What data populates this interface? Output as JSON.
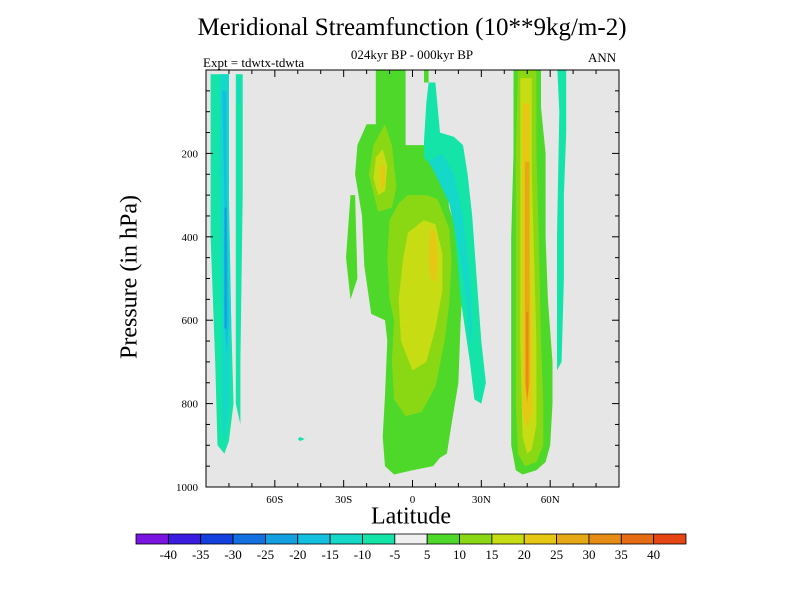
{
  "colors": {
    "background": "#e6e6e6",
    "scale": [
      "#7a14e0",
      "#3a1ce0",
      "#1440e0",
      "#1470e0",
      "#14a0e0",
      "#14c0e0",
      "#14d8c8",
      "#14e4a8",
      "#f0f0f0",
      "#4ed82a",
      "#8ad814",
      "#c8dc14",
      "#e6c814",
      "#e6a814",
      "#e68c14",
      "#e66c14",
      "#e64614"
    ]
  },
  "chart_data": {
    "type": "contour",
    "title": "Meridional Streamfunction (10**9kg/m-2)",
    "subtitle": "024kyr BP - 000kyr BP",
    "experiment": "Expt = tdwtx-tdwta",
    "season": "ANN",
    "xlabel": "Latitude",
    "ylabel": "Pressure (in hPa)",
    "xlim": [
      -90,
      90
    ],
    "ylim": [
      1000,
      0
    ],
    "x_ticks": [
      {
        "value": -60,
        "label": "60S"
      },
      {
        "value": -30,
        "label": "30S"
      },
      {
        "value": 0,
        "label": "0"
      },
      {
        "value": 30,
        "label": "30N"
      },
      {
        "value": 60,
        "label": "60N"
      }
    ],
    "y_ticks": [
      {
        "value": 200,
        "label": "200"
      },
      {
        "value": 400,
        "label": "400"
      },
      {
        "value": 600,
        "label": "600"
      },
      {
        "value": 800,
        "label": "800"
      },
      {
        "value": 1000,
        "label": "1000"
      }
    ],
    "colorbar_labels": [
      "-40",
      "-35",
      "-30",
      "-25",
      "-20",
      "-15",
      "-10",
      "-5",
      "5",
      "10",
      "15",
      "20",
      "25",
      "30",
      "35",
      "40"
    ],
    "regions": [
      {
        "name": "sh-high-cell",
        "level": -10,
        "points": [
          [
            -88,
            10
          ],
          [
            -80,
            10
          ],
          [
            -80,
            400
          ],
          [
            -78,
            800
          ],
          [
            -80,
            890
          ],
          [
            -82,
            920
          ],
          [
            -85,
            900
          ],
          [
            -86,
            700
          ],
          [
            -88,
            400
          ]
        ]
      },
      {
        "name": "sh-high-cell-inner",
        "level": -15,
        "points": [
          [
            -84,
            10
          ],
          [
            -80,
            10
          ],
          [
            -80,
            300
          ],
          [
            -79,
            600
          ],
          [
            -80,
            800
          ],
          [
            -82,
            890
          ],
          [
            -83,
            860
          ],
          [
            -83,
            600
          ],
          [
            -84,
            300
          ]
        ]
      },
      {
        "name": "sh-high-cell-core",
        "level": -20,
        "points": [
          [
            -83,
            50
          ],
          [
            -81,
            50
          ],
          [
            -81,
            300
          ],
          [
            -80,
            600
          ],
          [
            -81,
            680
          ],
          [
            -82,
            600
          ],
          [
            -82,
            300
          ]
        ]
      },
      {
        "name": "sh-high-cell-max",
        "level": -25,
        "points": [
          [
            -82,
            330
          ],
          [
            -81,
            330
          ],
          [
            -81,
            620
          ],
          [
            -82,
            620
          ]
        ]
      },
      {
        "name": "sh-cell-b",
        "level": -10,
        "points": [
          [
            -77,
            10
          ],
          [
            -74,
            10
          ],
          [
            -74,
            300
          ],
          [
            -75,
            700
          ],
          [
            -75,
            850
          ],
          [
            -77,
            800
          ],
          [
            -77,
            400
          ]
        ]
      },
      {
        "name": "sh-cell-b-inner",
        "level": -15,
        "points": [
          [
            -76,
            20
          ],
          [
            -75,
            20
          ],
          [
            -75,
            80
          ],
          [
            -76,
            80
          ]
        ]
      },
      {
        "name": "sh-small-blob",
        "level": -10,
        "points": [
          [
            -49,
            880
          ],
          [
            -47,
            885
          ],
          [
            -49,
            890
          ],
          [
            -50,
            885
          ]
        ]
      },
      {
        "name": "lat-strip-main",
        "level": 5,
        "points": [
          [
            -16,
            -20
          ],
          [
            -13,
            -20
          ],
          [
            -13,
            0
          ],
          [
            -7,
            0
          ],
          [
            -3,
            180
          ],
          [
            7,
            180
          ],
          [
            11,
            200
          ],
          [
            15,
            280
          ],
          [
            16,
            330
          ],
          [
            20,
            400
          ],
          [
            22,
            500
          ],
          [
            21,
            600
          ],
          [
            20,
            750
          ],
          [
            17,
            850
          ],
          [
            15,
            920
          ],
          [
            12,
            930
          ],
          [
            9,
            950
          ],
          [
            0,
            960
          ],
          [
            -8,
            970
          ],
          [
            -12,
            950
          ],
          [
            -13,
            880
          ],
          [
            -12,
            780
          ],
          [
            -11,
            650
          ],
          [
            -12,
            600
          ],
          [
            -18,
            585
          ],
          [
            -21,
            470
          ],
          [
            -22,
            350
          ],
          [
            -25,
            250
          ],
          [
            -24,
            180
          ],
          [
            -20,
            130
          ],
          [
            -16,
            130
          ]
        ]
      },
      {
        "name": "lat-strip-sh-edge",
        "level": 5,
        "points": [
          [
            -27,
            300
          ],
          [
            -25,
            300
          ],
          [
            -24,
            500
          ],
          [
            -27,
            550
          ],
          [
            -29,
            450
          ]
        ]
      },
      {
        "name": "sh-upper-core",
        "level": 10,
        "points": [
          [
            -17,
            180
          ],
          [
            -12,
            130
          ],
          [
            -9,
            180
          ],
          [
            -7,
            280
          ],
          [
            -9,
            330
          ],
          [
            -15,
            340
          ],
          [
            -19,
            250
          ]
        ]
      },
      {
        "name": "sh-upper-core-2",
        "level": 15,
        "points": [
          [
            -16,
            210
          ],
          [
            -13,
            190
          ],
          [
            -11,
            230
          ],
          [
            -12,
            290
          ],
          [
            -15,
            300
          ],
          [
            -17,
            260
          ]
        ]
      },
      {
        "name": "sh-upper-core-3",
        "level": 20,
        "points": [
          [
            -14,
            230
          ],
          [
            -12,
            230
          ],
          [
            -12,
            270
          ],
          [
            -13,
            290
          ],
          [
            -14,
            270
          ]
        ]
      },
      {
        "name": "eq-lower-cell",
        "level": 10,
        "points": [
          [
            -10,
            360
          ],
          [
            -6,
            320
          ],
          [
            -2,
            300
          ],
          [
            6,
            300
          ],
          [
            11,
            310
          ],
          [
            16,
            380
          ],
          [
            17,
            460
          ],
          [
            16,
            560
          ],
          [
            14,
            650
          ],
          [
            10,
            760
          ],
          [
            4,
            820
          ],
          [
            -3,
            830
          ],
          [
            -8,
            790
          ],
          [
            -9,
            700
          ],
          [
            -8,
            600
          ],
          [
            -10,
            550
          ],
          [
            -11,
            450
          ]
        ]
      },
      {
        "name": "eq-lower-cell-2",
        "level": 15,
        "points": [
          [
            -2,
            390
          ],
          [
            5,
            360
          ],
          [
            10,
            370
          ],
          [
            13,
            440
          ],
          [
            13,
            530
          ],
          [
            10,
            620
          ],
          [
            6,
            700
          ],
          [
            0,
            720
          ],
          [
            -5,
            650
          ],
          [
            -6,
            550
          ],
          [
            -4,
            450
          ]
        ]
      },
      {
        "name": "eq-lower-cell-3",
        "level": 20,
        "points": [
          [
            8,
            380
          ],
          [
            10,
            390
          ],
          [
            11,
            460
          ],
          [
            10,
            510
          ],
          [
            8,
            500
          ],
          [
            7,
            450
          ]
        ]
      },
      {
        "name": "nh-neg-arm",
        "level": -10,
        "points": [
          [
            5,
            170
          ],
          [
            5,
            210
          ],
          [
            12,
            250
          ],
          [
            16,
            280
          ],
          [
            19,
            420
          ],
          [
            21,
            550
          ],
          [
            25,
            700
          ],
          [
            27,
            790
          ],
          [
            30,
            800
          ],
          [
            32,
            750
          ],
          [
            30,
            650
          ],
          [
            28,
            500
          ],
          [
            26,
            350
          ],
          [
            24,
            250
          ],
          [
            22,
            180
          ],
          [
            18,
            160
          ],
          [
            12,
            150
          ],
          [
            10,
            30
          ],
          [
            7,
            30
          ],
          [
            6,
            80
          ]
        ]
      },
      {
        "name": "nh-neg-arm-2",
        "level": -15,
        "points": [
          [
            7,
            220
          ],
          [
            10,
            250
          ],
          [
            16,
            320
          ],
          [
            21,
            450
          ],
          [
            24,
            580
          ],
          [
            25,
            660
          ],
          [
            26,
            620
          ],
          [
            25,
            500
          ],
          [
            22,
            350
          ],
          [
            18,
            250
          ],
          [
            13,
            200
          ]
        ]
      },
      {
        "name": "lat-strip-nh-top",
        "level": 5,
        "points": [
          [
            -6,
            -20
          ],
          [
            -3,
            -20
          ],
          [
            -3,
            180
          ],
          [
            -7,
            180
          ],
          [
            -8,
            0
          ]
        ]
      },
      {
        "name": "lat-strip-nh-top2",
        "level": 5,
        "points": [
          [
            5,
            -20
          ],
          [
            7,
            -20
          ],
          [
            7,
            30
          ],
          [
            5,
            30
          ]
        ]
      },
      {
        "name": "nh-main-cell",
        "level": 5,
        "points": [
          [
            44,
            -20
          ],
          [
            56,
            -20
          ],
          [
            56,
            90
          ],
          [
            58,
            200
          ],
          [
            58,
            400
          ],
          [
            59,
            550
          ],
          [
            61,
            700
          ],
          [
            61,
            800
          ],
          [
            60,
            900
          ],
          [
            58,
            940
          ],
          [
            54,
            960
          ],
          [
            48,
            970
          ],
          [
            45,
            960
          ],
          [
            43,
            900
          ],
          [
            43,
            700
          ],
          [
            43,
            400
          ],
          [
            44,
            200
          ]
        ]
      },
      {
        "name": "nh-main-cell-2",
        "level": 10,
        "points": [
          [
            46,
            0
          ],
          [
            54,
            0
          ],
          [
            54,
            200
          ],
          [
            55,
            400
          ],
          [
            56,
            650
          ],
          [
            57,
            800
          ],
          [
            57,
            900
          ],
          [
            54,
            940
          ],
          [
            49,
            950
          ],
          [
            46,
            920
          ],
          [
            45,
            800
          ],
          [
            45,
            500
          ],
          [
            45,
            200
          ]
        ]
      },
      {
        "name": "nh-main-cell-3",
        "level": 15,
        "points": [
          [
            47,
            20
          ],
          [
            52,
            20
          ],
          [
            52,
            250
          ],
          [
            53,
            450
          ],
          [
            54,
            650
          ],
          [
            54,
            850
          ],
          [
            52,
            910
          ],
          [
            50,
            920
          ],
          [
            48,
            880
          ],
          [
            47,
            650
          ],
          [
            47,
            400
          ]
        ]
      },
      {
        "name": "nh-main-cell-4",
        "level": 20,
        "points": [
          [
            48,
            80
          ],
          [
            51,
            80
          ],
          [
            51,
            400
          ],
          [
            52,
            650
          ],
          [
            52,
            820
          ],
          [
            50,
            860
          ],
          [
            48,
            820
          ],
          [
            48,
            550
          ]
        ]
      },
      {
        "name": "nh-main-cell-5",
        "level": 25,
        "points": [
          [
            49,
            220
          ],
          [
            51,
            220
          ],
          [
            51,
            500
          ],
          [
            51,
            750
          ],
          [
            50,
            800
          ],
          [
            49,
            750
          ],
          [
            49,
            450
          ]
        ]
      },
      {
        "name": "nh-main-cell-6",
        "level": 30,
        "points": [
          [
            49.5,
            580
          ],
          [
            50.5,
            580
          ],
          [
            50.5,
            760
          ],
          [
            50,
            790
          ],
          [
            49.5,
            760
          ]
        ]
      },
      {
        "name": "nh-high-neg",
        "level": -10,
        "points": [
          [
            63,
            -20
          ],
          [
            67,
            -20
          ],
          [
            67,
            150
          ],
          [
            66,
            300
          ],
          [
            66,
            500
          ],
          [
            65,
            700
          ],
          [
            63,
            720
          ],
          [
            63,
            400
          ],
          [
            64,
            100
          ]
        ]
      }
    ]
  }
}
